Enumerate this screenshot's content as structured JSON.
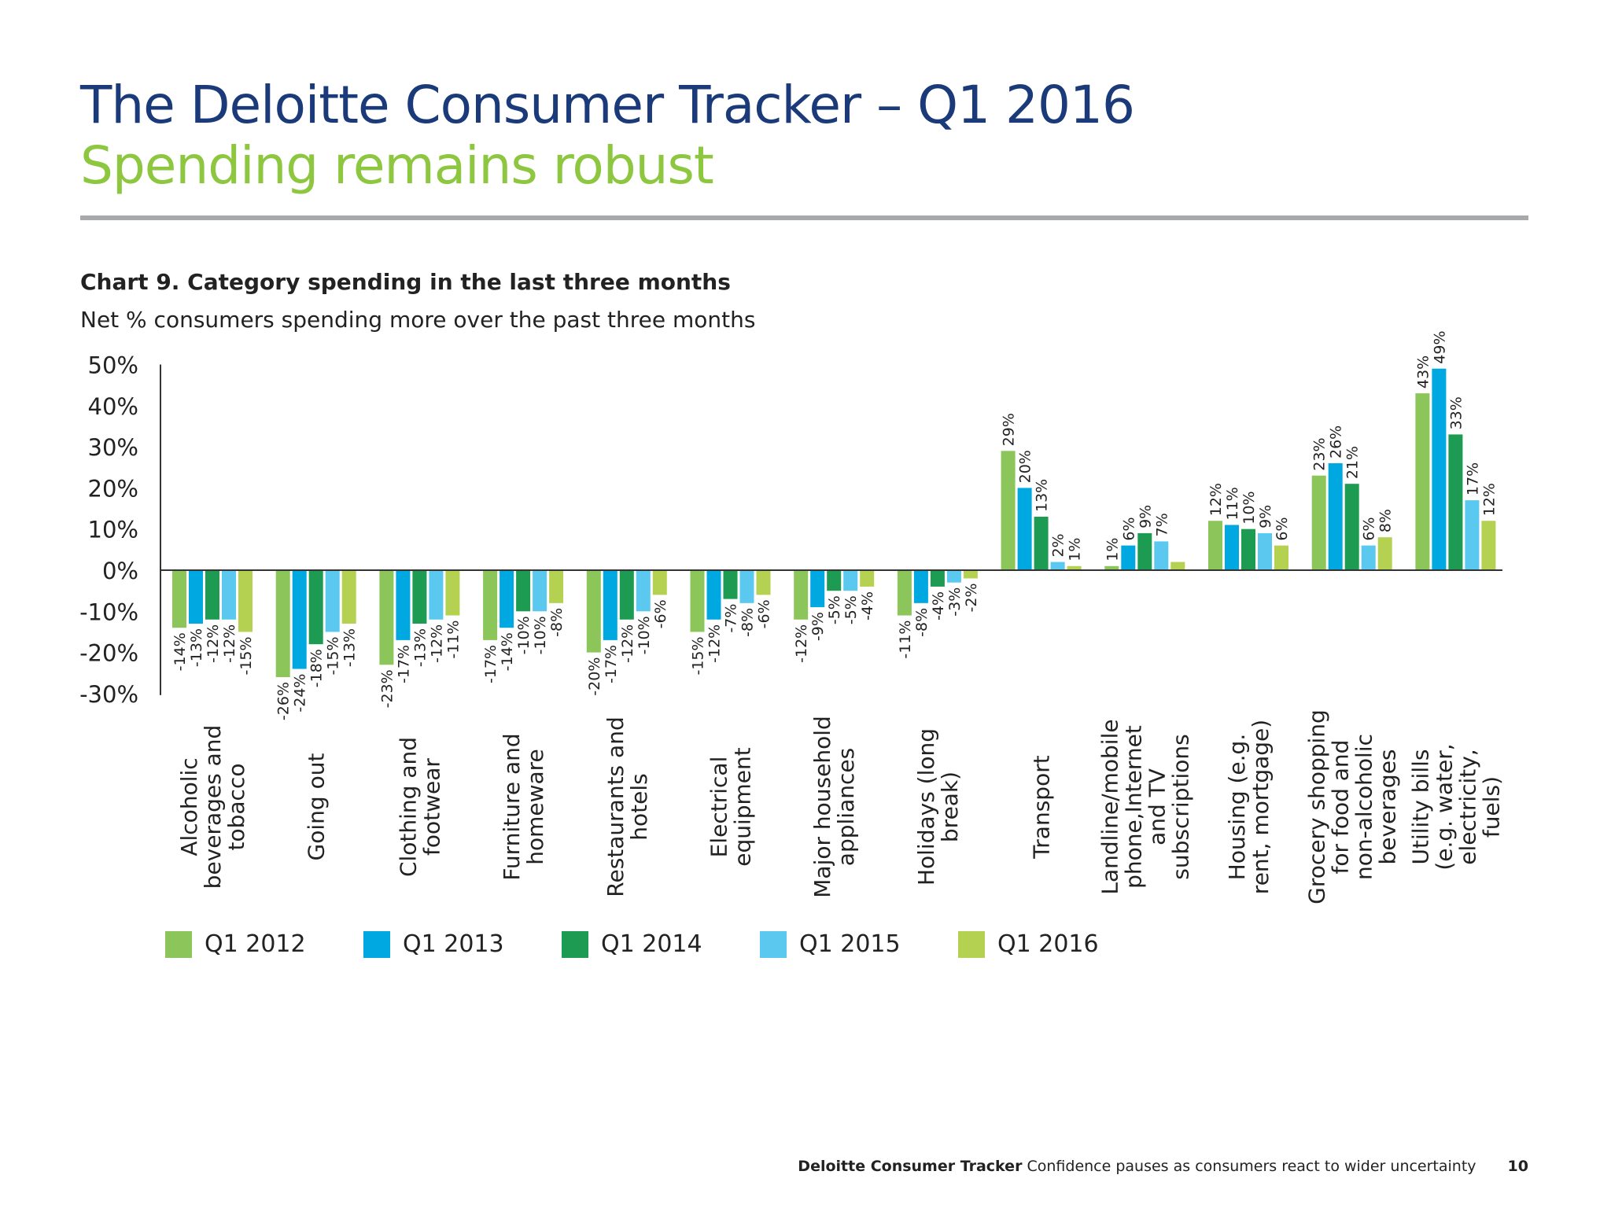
{
  "header": {
    "title": "The Deloitte Consumer Tracker – Q1 2016",
    "subtitle": "Spending remains robust"
  },
  "footer": {
    "brand": "Deloitte Consumer Tracker",
    "text": "Confidence pauses as consumers react to wider uncertainty",
    "page": "10"
  },
  "chart_data": {
    "type": "bar",
    "title": "Chart 9. Category spending in the last three months",
    "subtitle": "Net % consumers spending more over the past three months",
    "ylim": [
      -30,
      50
    ],
    "yticks": [
      "50%",
      "40%",
      "30%",
      "20%",
      "10%",
      "0%",
      "-10%",
      "-20%",
      "-30%"
    ],
    "ytick_values": [
      50,
      40,
      30,
      20,
      10,
      0,
      -10,
      -20,
      -30
    ],
    "grid": false,
    "legend_position": "bottom",
    "categories": [
      "Alcoholic beverages and tobacco",
      "Going out",
      "Clothing and footwear",
      "Furniture and homeware",
      "Restaurants and hotels",
      "Electrical equipment",
      "Major household appliances",
      "Holidays (long break)",
      "Transport",
      "Landline/mobile phone,Internet and TV subscriptions",
      "Housing (e.g. rent, mortgage)",
      "Grocery shopping for food and non-alcoholic beverages",
      "Utility bills (e.g. water, electricity, fuels)"
    ],
    "series": [
      {
        "name": "Q1 2012",
        "color": "#8cc65b",
        "values": [
          -14,
          -26,
          -23,
          -17,
          -20,
          -15,
          -12,
          -11,
          29,
          1,
          12,
          23,
          43
        ]
      },
      {
        "name": "Q1 2013",
        "color": "#00a8e1",
        "values": [
          -13,
          -24,
          -17,
          -14,
          -17,
          -12,
          -9,
          -8,
          20,
          6,
          11,
          26,
          49
        ]
      },
      {
        "name": "Q1 2014",
        "color": "#1e9b52",
        "values": [
          -12,
          -18,
          -13,
          -10,
          -12,
          -7,
          -5,
          -4,
          13,
          9,
          10,
          21,
          33
        ]
      },
      {
        "name": "Q1 2015",
        "color": "#5bc8f0",
        "values": [
          -12,
          -15,
          -12,
          -10,
          -10,
          -8,
          -5,
          -3,
          2,
          7,
          9,
          6,
          17
        ]
      },
      {
        "name": "Q1 2016",
        "color": "#b5d152",
        "values": [
          -15,
          -13,
          -11,
          -8,
          -6,
          -6,
          -4,
          -2,
          1,
          2,
          6,
          8,
          12
        ]
      }
    ],
    "labels_hidden": [
      [
        9,
        4
      ]
    ]
  }
}
